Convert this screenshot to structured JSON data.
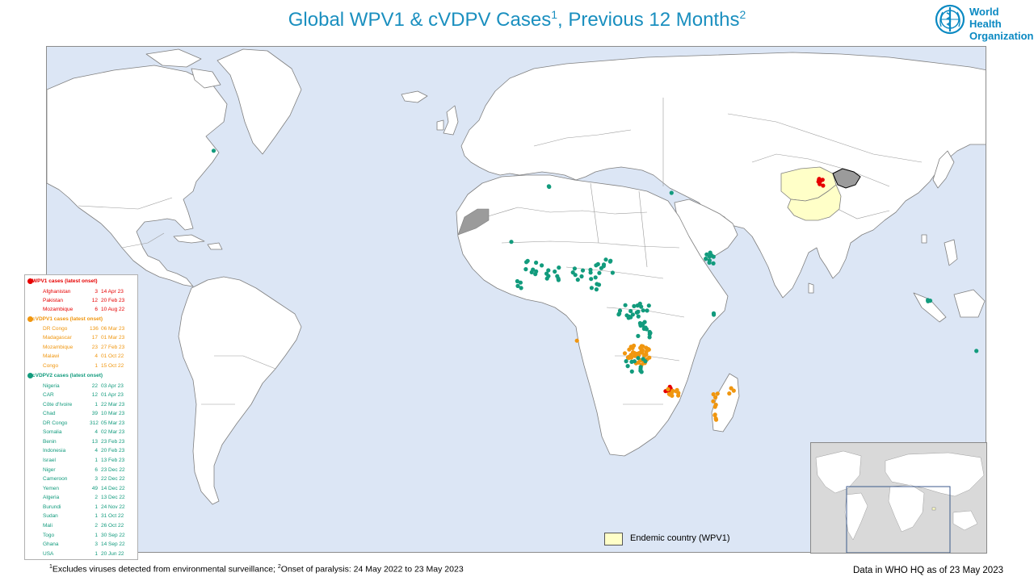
{
  "header": {
    "title_main": "Global WPV1 & cVDPV Cases",
    "title_sup1": "1",
    "title_mid": ", Previous 12 Months",
    "title_sup2": "2"
  },
  "logo": {
    "line1": "World Health",
    "line2": "Organization"
  },
  "colors": {
    "ocean": "#dce6f5",
    "land": "#ffffff",
    "border": "#7f7f7f",
    "endemic": "#ffffc8",
    "no_data": "#9b9b9b",
    "wpv1": "#e60000",
    "cvdpv1": "#f0960f",
    "cvdpv2": "#129b7d"
  },
  "legend": {
    "wpv1": {
      "heading": "WPV1 cases (latest onset)",
      "rows": [
        {
          "country": "Afghanistan",
          "count": "3",
          "date": "14 Apr 23"
        },
        {
          "country": "Pakistan",
          "count": "12",
          "date": "20 Feb 23"
        },
        {
          "country": "Mozambique",
          "count": "6",
          "date": "10 Aug 22"
        }
      ]
    },
    "cvdpv1": {
      "heading": "cVDPV1 cases (latest onset)",
      "rows": [
        {
          "country": "DR Congo",
          "count": "136",
          "date": "06 Mar 23"
        },
        {
          "country": "Madagascar",
          "count": "17",
          "date": "01 Mar 23"
        },
        {
          "country": "Mozambique",
          "count": "23",
          "date": "27 Feb 23"
        },
        {
          "country": "Malawi",
          "count": "4",
          "date": "01 Oct 22"
        },
        {
          "country": "Congo",
          "count": "1",
          "date": "15 Oct 22"
        }
      ]
    },
    "cvdpv2": {
      "heading": "cVDPV2 cases (latest onset)",
      "rows": [
        {
          "country": "Nigeria",
          "count": "22",
          "date": "03 Apr 23"
        },
        {
          "country": "CAR",
          "count": "12",
          "date": "01 Apr 23"
        },
        {
          "country": "Côte d'Ivoire",
          "count": "1",
          "date": "22 Mar 23"
        },
        {
          "country": "Chad",
          "count": "39",
          "date": "10 Mar 23"
        },
        {
          "country": "DR Congo",
          "count": "312",
          "date": "05 Mar 23"
        },
        {
          "country": "Somalia",
          "count": "4",
          "date": "02 Mar 23"
        },
        {
          "country": "Benin",
          "count": "13",
          "date": "23 Feb 23"
        },
        {
          "country": "Indonesia",
          "count": "4",
          "date": "20 Feb 23"
        },
        {
          "country": "Israel",
          "count": "1",
          "date": "13 Feb 23"
        },
        {
          "country": "Niger",
          "count": "6",
          "date": "23 Dec 22"
        },
        {
          "country": "Cameroon",
          "count": "3",
          "date": "22 Dec 22"
        },
        {
          "country": "Yemen",
          "count": "49",
          "date": "14 Dec 22"
        },
        {
          "country": "Algeria",
          "count": "2",
          "date": "13 Dec 22"
        },
        {
          "country": "Burundi",
          "count": "1",
          "date": "24 Nov 22"
        },
        {
          "country": "Sudan",
          "count": "1",
          "date": "31 Oct 22"
        },
        {
          "country": "Mali",
          "count": "2",
          "date": "26 Oct 22"
        },
        {
          "country": "Togo",
          "count": "1",
          "date": "30 Sep 22"
        },
        {
          "country": "Ghana",
          "count": "3",
          "date": "14 Sep 22"
        },
        {
          "country": "USA",
          "count": "1",
          "date": "20 Jun 22"
        }
      ]
    }
  },
  "endemic_label": "Endemic country (WPV1)",
  "footnote": {
    "sup1": "1",
    "text1": "Excludes viruses detected from environmental surveillance;  ",
    "sup2": "2",
    "text2": "Onset of paralysis: 24 May 2022 to 23 May 2023"
  },
  "data_date": "Data in WHO HQ as of 23 May 2023"
}
